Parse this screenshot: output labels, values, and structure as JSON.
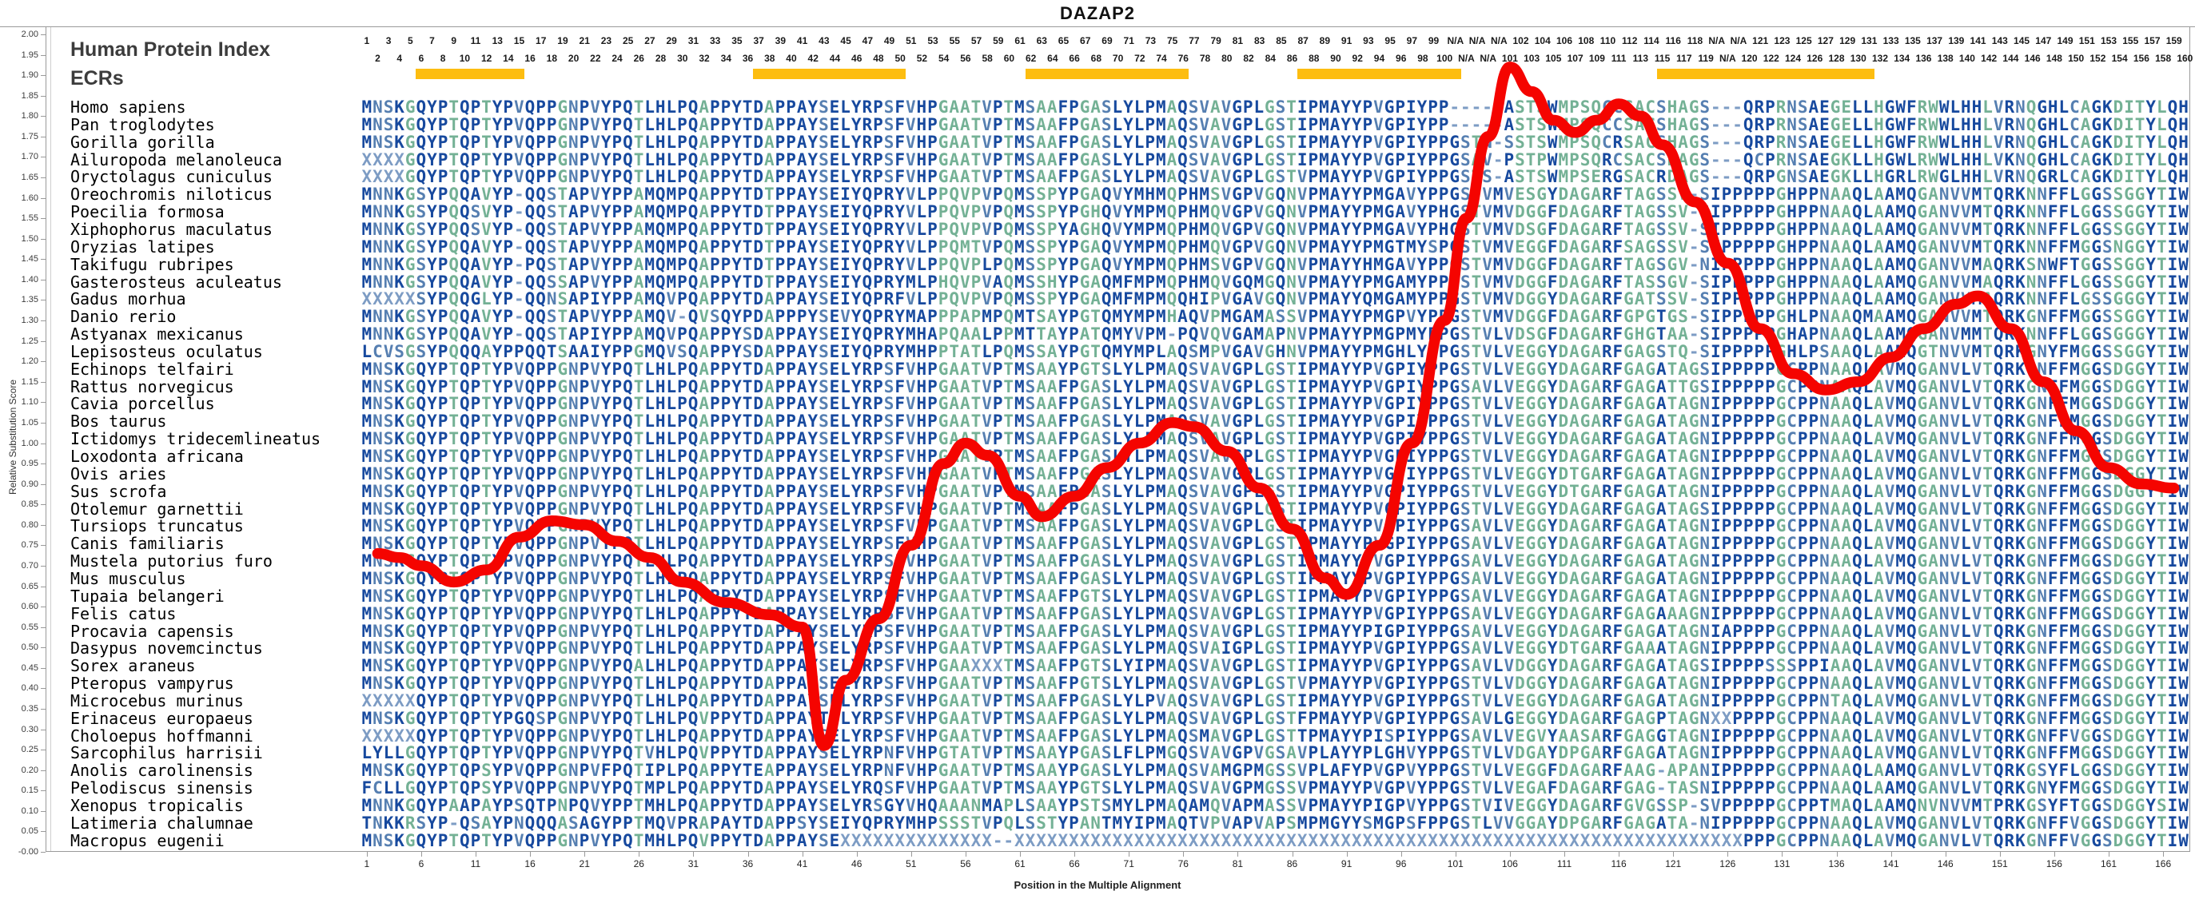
{
  "title": "DAZAP2",
  "panel": {
    "header": "Human Protein Index",
    "ecrs_label": "ECRs"
  },
  "y_axis": {
    "label": "Relative Substitution Score",
    "max": 2.0,
    "min": 0.0,
    "step": 0.05
  },
  "x_axis": {
    "label": "Position in the Multiple Alignment",
    "ticks": [
      1,
      6,
      11,
      16,
      21,
      26,
      31,
      36,
      41,
      46,
      51,
      56,
      61,
      66,
      71,
      76,
      81,
      86,
      91,
      96,
      101,
      106,
      111,
      116,
      121,
      126,
      131,
      136,
      141,
      146,
      151,
      156,
      161,
      166
    ]
  },
  "position_labels": {
    "odd_row": [
      "1",
      "3",
      "5",
      "7",
      "9",
      "11",
      "13",
      "15",
      "17",
      "19",
      "21",
      "23",
      "25",
      "27",
      "29",
      "31",
      "33",
      "35",
      "37",
      "39",
      "41",
      "43",
      "45",
      "47",
      "49",
      "51",
      "53",
      "55",
      "57",
      "59",
      "61",
      "63",
      "65",
      "67",
      "69",
      "71",
      "73",
      "75",
      "77",
      "79",
      "81",
      "83",
      "85",
      "87",
      "89",
      "91",
      "93",
      "95",
      "97",
      "99",
      "N/A",
      "N/A",
      "N/A",
      "102",
      "104",
      "106",
      "108",
      "110",
      "112",
      "114",
      "116",
      "118",
      "N/A",
      "N/A",
      "121",
      "123",
      "125",
      "127",
      "129",
      "131",
      "133",
      "135",
      "137",
      "139",
      "141",
      "143",
      "145",
      "147",
      "149",
      "151",
      "153",
      "155",
      "157",
      "159"
    ],
    "even_row": [
      "2",
      "4",
      "6",
      "8",
      "10",
      "12",
      "14",
      "16",
      "18",
      "20",
      "22",
      "24",
      "26",
      "28",
      "30",
      "32",
      "34",
      "36",
      "38",
      "40",
      "42",
      "44",
      "46",
      "48",
      "50",
      "52",
      "54",
      "56",
      "58",
      "60",
      "62",
      "64",
      "66",
      "68",
      "70",
      "72",
      "74",
      "76",
      "78",
      "80",
      "82",
      "84",
      "86",
      "88",
      "90",
      "92",
      "94",
      "96",
      "98",
      "100",
      "N/A",
      "N/A",
      "101",
      "103",
      "105",
      "107",
      "109",
      "111",
      "113",
      "115",
      "117",
      "119",
      "N/A",
      "120",
      "122",
      "124",
      "126",
      "128",
      "130",
      "132",
      "134",
      "136",
      "138",
      "140",
      "142",
      "144",
      "146",
      "148",
      "150",
      "152",
      "154",
      "156",
      "158",
      "160"
    ]
  },
  "ecr_bars": {
    "color": "#FDBD10",
    "column_ranges": [
      [
        6,
        15
      ],
      [
        37,
        50
      ],
      [
        62,
        76
      ],
      [
        87,
        101
      ],
      [
        120,
        139
      ]
    ]
  },
  "colors": {
    "seq_navy": "#17499E",
    "seq_steel": "#567FB1",
    "seq_green": "#74B195",
    "seq_muted": "#7D9CC4",
    "line_red": "#F50400",
    "ecr_yellow": "#FDBD10",
    "frame_gray": "#9A9A9A"
  },
  "chart_data": {
    "type": "line",
    "title": "DAZAP2",
    "xlabel": "Position in the Multiple Alignment",
    "ylabel": "Relative Substitution Score",
    "ylim": [
      0.0,
      2.0
    ],
    "xlim": [
      1,
      168
    ],
    "legend_position": "none",
    "grid": false,
    "series_name": "relative substitution score",
    "points": [
      [
        2,
        0.73
      ],
      [
        4,
        0.72
      ],
      [
        6,
        0.7
      ],
      [
        9,
        0.66
      ],
      [
        12,
        0.69
      ],
      [
        15,
        0.77
      ],
      [
        18,
        0.81
      ],
      [
        21,
        0.8
      ],
      [
        24,
        0.76
      ],
      [
        27,
        0.72
      ],
      [
        30,
        0.66
      ],
      [
        34,
        0.61
      ],
      [
        38,
        0.58
      ],
      [
        41,
        0.55
      ],
      [
        43,
        0.26
      ],
      [
        45,
        0.42
      ],
      [
        48,
        0.57
      ],
      [
        51,
        0.75
      ],
      [
        54,
        0.95
      ],
      [
        56,
        1.0
      ],
      [
        58,
        0.97
      ],
      [
        61,
        0.87
      ],
      [
        63,
        0.82
      ],
      [
        66,
        0.87
      ],
      [
        69,
        0.94
      ],
      [
        72,
        1.0
      ],
      [
        75,
        1.05
      ],
      [
        77,
        1.04
      ],
      [
        80,
        0.98
      ],
      [
        83,
        0.89
      ],
      [
        86,
        0.79
      ],
      [
        89,
        0.67
      ],
      [
        91,
        0.63
      ],
      [
        94,
        0.75
      ],
      [
        97,
        1.0
      ],
      [
        100,
        1.3
      ],
      [
        102,
        1.55
      ],
      [
        104,
        1.75
      ],
      [
        106,
        1.92
      ],
      [
        108,
        1.86
      ],
      [
        110,
        1.79
      ],
      [
        112,
        1.76
      ],
      [
        114,
        1.79
      ],
      [
        116,
        1.83
      ],
      [
        118,
        1.8
      ],
      [
        120,
        1.73
      ],
      [
        123,
        1.59
      ],
      [
        126,
        1.44
      ],
      [
        129,
        1.28
      ],
      [
        132,
        1.17
      ],
      [
        135,
        1.13
      ],
      [
        138,
        1.15
      ],
      [
        141,
        1.21
      ],
      [
        144,
        1.28
      ],
      [
        147,
        1.34
      ],
      [
        149,
        1.36
      ],
      [
        152,
        1.28
      ],
      [
        155,
        1.15
      ],
      [
        158,
        1.03
      ],
      [
        161,
        0.94
      ],
      [
        164,
        0.9
      ],
      [
        167,
        0.89
      ]
    ]
  },
  "alignment": {
    "num_columns": 168,
    "species": [
      {
        "name": "Homo sapiens",
        "seq": "MNSKGQYPTQPTYPVQPPGNPVYPQTLHLPQAPPYTDAPPAYSELYRPSFVHPGAATVPTMSAAFPGASLYLPMAQSVAVGPLGSTIPMAYYPVGPIYPP-----ASTSWMPSQCCSACSHAGS---QRPRNSAEGELLHGWFRWWLHHLVRNQGHLCAGKDITYLQH"
      },
      {
        "name": "Pan troglodytes",
        "seq": "MNSKGQYPTQPTYPVQPPGNPVYPQTLHLPQAPPYTDAPPAYSELYRPSFVHPGAATVPTMSAAFPGASLYLPMAQSVAVGPLGSTIPMAYYPVGPIYPP-----ASTSWMPSQCCSACSHAGS---QRPRNSAEGELLHGWFRWWLHHLVRNQGHLCAGKDITYLQH"
      },
      {
        "name": "Gorilla gorilla",
        "seq": "MNSKGQYPTQPTYPVQPPGNPVYPQTLHLPQAPPYTDAPPAYSELYRPSFVHPGAATVPTMSAAFPGASLYLPMAQSVAVGPLGSTIPMAYYPVGPIYPPGSTN-SSTSWMPSQCRSACSHAGS---QRPRNSAEGELLHGWFRWWLHHLVRNQGHLCAGKDITYLQH"
      },
      {
        "name": "Ailuropoda melanoleuca",
        "seq": "XXXXGQYPTQPTYPVQPPGNPVYPQTLHLPQAPPYTDAPPAYSELYRPSFVHPGAATVPTMSAAFPGASLYLPMAQSVAVGPLGSTIPMAYYPVGPIYPPGSAV-PSTPWMPSQRCSACSHAGS---QCPRNSAEGKLLHGWLRWWLHHLVKNQGHLCAGKDITYLQH"
      },
      {
        "name": "Oryctolagus cuniculus",
        "seq": "XXXXGQYPTQPTYPVQPPGNPVYPQTLHLPQAPPYTDAPPAYSELYRPSFVHPGAATVPTMSAAFPGASLYLPMAQSVAVGPLGSTVPMAYYPVGPIYPPGSTS-ASTSWMPSERGSACRDAGS---QRPGNSAEGKLLHGRLRWGLHHLVRNQGRLCAGKDITYLQH"
      },
      {
        "name": "Oreochromis niloticus",
        "seq": "MNNKGSYPQQAVYP-QQSTAPVYPPAMQMPQAPPYTDTPPAYSEIYQPRYVLPPQVPVPQMSSPYPGAQVYMHMQPHMSVGPVGQNVPMAYYPMGAVYPPGSTVMVESGYDAGARFTAGSSV-SIPPPPPGHPPNAAQLAAMQGANVVMTQRKNNFFLGGSSGGYTIW"
      },
      {
        "name": "Poecilia formosa",
        "seq": "MNNKGSYPQQSVYP-QQSTAPVYPPAMQMPQAPPYTDTPPAYSEIYQPRYVLPPQVPVPQMSSPYPGHQVYMPMQPHMQVGPVGQNVPMAYYPMGAVYPHGSTVMVDGGFDAGARFTAGSSV-SIPPPPPGHPPNAAQLAAMQGANVVMTQRKNNFFLGGSSGGYTIW"
      },
      {
        "name": "Xiphophorus maculatus",
        "seq": "MNNKGSYPQQSVYP-QQSTAPVYPPAMQMPQAPPYTDTPPAYSEIYQPRYVLPPQVPVPQMSSPYAGHQVYMPMQPHMQVGPVGQNVPMAYYPMGAVYPHGSTVMVDSGFDAGARFTAGSSV-SIPPPPPGHPPNAAQLAAMQGANVVMTQRKNNFFLGGSSGGYTIW"
      },
      {
        "name": "Oryzias latipes",
        "seq": "MNNKGSYPQQAVYP-QQSTAPVYPPAMQMPQAPPYTDTPPAYSEIYQPRYVLPPQMTVPQMSSPYPGAQVYMPMQPHMQVGPVGQNVPMAYYPMGTMYSPGSTVMVEGGFDAGARFSAGSSV-SIPPPPPGHPPNAAQLAAMQGANVVMTQRKNNFFMGGSNGGYTIW"
      },
      {
        "name": "Takifugu rubripes",
        "seq": "MNNKGSYPQQAVYP-PQSTAPVYPPAMQMPQAPPYTDTPPAYSEIYQPRYVLPPQVPLPQMSSPYPGAQVYMPMQPHMSVGPVGQNVPMAYYHMGAVYPPGSTVMVDGGFDAGARFTAGSGV-NIPPPPPGHPPNAAQLAAMQGANVVMAQRKSNWFTGGSSGGYTIW"
      },
      {
        "name": "Gasterosteus aculeatus",
        "seq": "MNNKGSYPQQAVYP-QQSSAPVYPPAMQMPQAPPYTDTPPAYSEIYQPRYMLPHQVPVAQMSSHYPGAQMFMPMQPHMQVGQMGQNVPMAYYPMGAMYPPGSTVMVDGGFDAGARFTASSGV-SIPPPPPGHPPNAAQLAAMQGANVVMAQRKNNFFLGGSSGGYTIW"
      },
      {
        "name": "Gadus morhua",
        "seq": "XXXXXSYPQQGLYP-QQNSAPIYPPAMQVPQAPPYTDAPPAYSEIYQPRFVLPPQVPVPQMSSPYPGAQMFMPMQQHIPVGAVGQNVPMAYYQMGAMYPPGSTVMVDGGYDAGARFGATSSV-SIPPPPPGHPPNAAQLAAMQGANVVMAQRKNNFFLGSSGGGYTIW"
      },
      {
        "name": "Danio rerio",
        "seq": "MNNKGSYPQQAVYP-QQSTAPVYPPAMQV-QVSQYPDAPPPYSEVYQPRYMAPPPAPMPQMTSAYPGTQMYMPMHAQVPMGAMASSVPMAYYPMGPVYPPGSTVMVDGGFDAGARFGPGTGS-SIPPPPPGHLPNAAQMAAMQGANVVMTQRKGNFFMGGSSGGYTIW"
      },
      {
        "name": "Astyanax mexicanus",
        "seq": "MNNKGSYPQQAVYP-QQSTAPIYPPAMQVPQAPPYSDAPPAYSEIYQPRYMHAPQAALPPMTTAYPATQMYVPM-PQVQVGAMAPNVPMAYYPMGPMYPPGSTVLVDSGFDAGARFGHGTAA-SIPPPPPGHAPNAAQLAAMQGANVMMTQRKNNFFLGGSGGGYTIW"
      },
      {
        "name": "Lepisosteus oculatus",
        "seq": "LCVSGSYPQQQAYPPQQTSAAIYPPGMQVSQAPPYSDAPPAYSEIYQPRYMHPPTATLPQMSSAYPGTQMYMPLAQSMPVGAVGHNVPMAYYPMGHLYPPGSTVLVEGGYDAGARFGAGSTQ-SIPPPPPGHLPSAAQLAAMQGTNVVMTQRKGNYFMGGSSGGYTIW"
      },
      {
        "name": "Echinops telfairi",
        "seq": "MNSKGQYPTQPTYPVQPPGNPVYPQTLHLPQAPPYTDAPPAYSELYRPSFVHPGAATVPTMSAAYPGTSLYLPMAQSVAVGPLGSTIPMAYYPVGPIYPPGSTVLVEGGYDAGARFGAGATAGSIPPPPPGCPPNAAQLAVMQGANVLVTQRKGNFFMGGSDGGYTIW"
      },
      {
        "name": "Rattus norvegicus",
        "seq": "MNSKGQYPTQPTYPVQPPGNPVYPQTLHLPQAPPYTDAPPAYSELYRPSFVHPGAATVPTMSAAFPGASLYLPMAQSVAVGPLGSTIPMAYYPVGPIYPPGSAVLVEGGYDAGARFGAGATTGSIPPPPPGCPPNAAQLAVMQGANVLVTQRKGNFFMGGSDGGYTIW"
      },
      {
        "name": "Cavia porcellus",
        "seq": "MNSKGQYPTQPTYPVQPPGNPVYPQTLHLPQAPPYTDAPPAYSELYRPSFVHPGAATVPTMSAAFPGASLYLPMAQSVAVGPLGSTIPMAYYPVGPIYPPGSTVLVEGGYDAGARFGAGATAGNIPPPPPGCPPNAAQLAVMQGANVLVTQRKGNFFMGGSDGGYTIW"
      },
      {
        "name": "Bos taurus",
        "seq": "MNSKGQYPTQPTYPVQPPGNPVYPQTLHLPQAPPYTDAPPAYSELYRPSFVHPGAATVPTMSAAFPGASLYLPMAQSVAVGPLGSTIPMAYYPVGPIYPPGSTVLVEGGYDAGARFGAGATAGNIPPPPPGCPPNAAQLAVMQGANVLVTQRKGNFFMGGSDGGYTIW"
      },
      {
        "name": "Ictidomys tridecemlineatus",
        "seq": "MNSKGQYPTQPTYPVQPPGNPVYPQTLHLPQAPPYTDAPPAYSELYRPSFVHPGAATVPTMSAAFPGASLYLPMAQSVAVGPLGSTIPMAYYPVGPIYPPGSTVLVEGGYDAGARFGAGATAGNIPPPPPGCPPNAAQLAVMQGANVLVTQRKGNFFMGGSDGGYTIW"
      },
      {
        "name": "Loxodonta africana",
        "seq": "MNSKGQYPTQPTYPVQPPGNPVYPQTLHLPQAPPYTDAPPAYSELYRPSFVHPGAATVPTMSAAFPGASLYLPMAQSVAVGPLGSTIPMAYYPVGPIYPPGSTVLVEGGYDAGARFGAGATAGNIPPPPPGCPPNAAQLAVMQGANVLVTQRKGNFFMGGSDGGYTIW"
      },
      {
        "name": "Ovis aries",
        "seq": "MNSKGQYPTQPTYPVQPPGNPVYPQTLHLPQAPPYTDAPPAYSELYRPSFVHPGAATVPTMSAAFPGASLYLPMAQSVAVGPLGSTIPMAYYPVGPIYPPGSTVLVEGGYDTGARFGAGATAGNIPPPPPGCPPNAAQLAVMQGANVLVTQRKGNFFMGGSDGGYTIW"
      },
      {
        "name": "Sus scrofa",
        "seq": "MNSKGQYPTQPTYPVQPPGNPVYPQTLHLPQAPPYTDAPPAYSELYRPSFVHPGAATVPTMSAAFPGASLYLPMAQSVAVGPLGSTIPMAYYPVGPIYPPGSTVLVEGGYDTGARFGAGATAGNIPPPPPGCPPNAAQLAVMQGANVLVTQRKGNFFMGGSDGGYTIW"
      },
      {
        "name": "Otolemur garnettii",
        "seq": "MNSKGQYPTQPTYPVQPPGNPVYPQTLHLPQAPPYTDAPPAYSELYRPSFVHPGAATVPTMSAAFPGASLYLPMAQSVAVGPLGSTIPMAYYPVGPIYPPGSTVLVEGGYDAGARFGAGATAGSIPPPPPGCPPNAAQLAVMQGANVLVTQRKGNFFMGGSDGGYTIW"
      },
      {
        "name": "Tursiops truncatus",
        "seq": "MNSKGQYPTQPTYPVQPPGNPVYPQTLHLPQAPPYTDAPPAYSELYRPSFVHPGAATVPTMSAAFPGASLYLPMAQSVAVGPLGSTIPMAYYPVGPIYPPGSAVLVEGGYDAGARFGAGATAGNIPPPPPGCPPNAAQLAVMQGANVLVTQRKGNFFMGGSDGGYTIW"
      },
      {
        "name": "Canis familiaris",
        "seq": "MNSKGQYPTQPTYPVQPPGNPVYPQTLHLPQAPPYTDAPPAYSELYRPSFVHPGAATVPTMSAAFPGASLYLPMAQSVAVGPLGSTIPMAYYPVGPIYPPGSAVLVEGGYDAGARFGAGATAGNIPPPPPGCPPNAAQLAVMQGANVLVTQRKGNFFMGGSDGGYTIW"
      },
      {
        "name": "Mustela putorius furo",
        "seq": "MNSKGQYPTQPTYPVQPPGNPVYPQTLHLPQAPPYTDAPPAYSELYRPSFVHPGAATVPTMSAAFPGASLYLPMAQSVAVGPLGSTIPMAYYPVGPIYPPGSAVLVEGGYDAGARFGAGATAGNIPPPPPGCPPNAAQLAVMQGANVLVTQRKGNFFMGGSDGGYTIW"
      },
      {
        "name": "Mus musculus",
        "seq": "MNSKGQYPTQPTYPVQPPGNPVYPQTLHLPQAPPYTDAPPAYSELYRPSFVHPGAATVPTMSAAFPGASLYLPMAQSVAVGPLGSTIPMAYYPVGPIYPPGSAVLVEGGYDAGARFGAGATAGNIPPPPPGCPPNAAQLAVMQGANVLVTQRKGNFFMGGSDGGYTIW"
      },
      {
        "name": "Tupaia belangeri",
        "seq": "MNSKGQYPTQPTYPVQPPGNPVYPQTLHLPQAPPYTDAPPAYSELYRPSFVHPGAATVPTMSAAFPGTSLYLPMAQSVAVGPLGSTIPMAYYPVGPIYPPGSAVLVEGGYDAGARFGAGATAGNIPPPPPGCPPNAAQLAVMQGANVLVTQRKGNFFMGGSDGGYTIW"
      },
      {
        "name": "Felis catus",
        "seq": "MNSKGQYPTQPTYPVQPPGNPVYPQTLHLPQAPPYTDAPPAYSELYRPSFVHPGAATVPTMSAAFPGASLYLPMAQSVAVGPLGSTIPMAYYPVGPIYPPGSAVLVEGGYDAGARFGAGAAAGNIPPPPPGCPPNAAQLAVMQGANVLVTQRKGNFFMGGSDGGYTIW"
      },
      {
        "name": "Procavia capensis",
        "seq": "MNSKGQYPTQPTYPVQPPGNPVYPQTLHLPQAPPYTDAPPAYSELYRPSFVHPGAATVPTMSAAFPGASLYLPMAQSVAVGPLGSTIPMAYYPIGPIYPPGSAVLVEGGYDAGARFGAGATAGNIAPPPPGCPPNAAQLAVMQGANVLVTQRKGNFFMGGSDGGYTIW"
      },
      {
        "name": "Dasypus novemcinctus",
        "seq": "MNSKGQYPTQPTYPVQPPGNPVYPQTLHLPQAPPYTDAPPAYSELYRPSFVHPGAATVPTMSAAFPGASLYLPMAQSVAIGPLGSTIPMAYYPVGPIYPPGSAVLVEGGYDTGARFGAAATAGNIPPPPPGCPPNAAQLAVMQGANVLVTQRKGNFFMGGSDGGYTIW"
      },
      {
        "name": "Sorex araneus",
        "seq": "MNSKGQYPTQPTYPVQPPGNPVYPQALHLPQAPPYTDAPPAYSELYRPSFVHPGAAXXXTMSAAFPGTSLYIPMAQSVAVGPLGSTIPMAYYPVGPIYPPGSAVLVDGGYDAGARFGAGATAGSIPPPPSSSPPIAAQLAVMQGANVLVTQRKGNFFMGGSDGGYTIW"
      },
      {
        "name": "Pteropus vampyrus",
        "seq": "MNSKGQYPTQPTYPVQPPGNPVYPQTLHLPQAPPYTDAPPAYSELYRPSFVHPGAATVPTMSAAFPGTSLYLPMAQSVAVGPLGSTVPMAYYPVGPIYPPGSTVLVDGGYDAGARFGAGATAGNIPPPPPGCPPNAAQLAVMQGANVLVTQRKGNFFMGGSDGGYTIW"
      },
      {
        "name": "Microcebus murinus",
        "seq": "XXXXXQYPTQPTYPVQPPGNPVYPQTLHLPQAPPYTDAPPAYSELYRPSFVHPGAATVPTMSAAFPGASLYLPVAQSVAVGPLGSTIPMAYYPVGPIYPPGSTVLVEGGYDAGARFGAGATAGNIPPPPPGCPPNTAQLAVMQGANVLVTQRKGNFFMGGSDGGYTIW"
      },
      {
        "name": "Erinaceus europaeus",
        "seq": "MNSKGQYPTQPTYPGQSPGNPVYPQTLHLPQVPPYTDAPPAYTELYRPSFVHPGAATVPTMSAAFPGASLYLPMAQSVAVGPLGSTFPMAYYPVGPIYPPGSAVLGEGGYDAGARFGAGPTAGNXXPPPPGCPPNAAQLAVMQGANVLVTQRKGNFFMGGSDGGYTIW"
      },
      {
        "name": "Choloepus hoffmanni",
        "seq": "XXXXXQYPTQPTYPVQPPGNPVYPQTLHLPQAPPYTDAPPAYSELYRPSFVHPGAATVPTMSAAFPGASLYLPMAQSMAVGPLGSTTPMAYYPISPIYPPGSAVLVEGVYAASARFGAGGTAGNIPPPPPGCPPNAAQLAVMQGANVLVTQRKGNFFVGGSDGGYTIW"
      },
      {
        "name": "Sarcophilus harrisii",
        "seq": "LYLLGQYPTQPTYPVQPPGNPVYPQTVHLPQVPPYTDAPPAYSELYRPNFVHPGTATVPTMSAAYPGASLFLPMGQSVAVGPVGSAVPLAYYPLGHVYPPGSTVLVDGAYDPGARFGAGATAGNIPPPPPGCPPNAAQLAVMQGANVLVTQRKGNFFMGGSDGGYTIW"
      },
      {
        "name": "Anolis carolinensis",
        "seq": "MNSKGQYPTQPSYPVQPPGNPVFPQTIPLPQAPPYTEAPPAYSELYRPNFVHPGAATVPTMSAAYPGASLYLPMAQSVAMGPMGSSVPLAFYPVGPVYPPGSTVLVEGGFDAGARFAAG-APANIPPPPPGCPPNAAQLAAMQGANVLVTQRKGSYFLGGSDGGYTIW"
      },
      {
        "name": "Pelodiscus sinensis",
        "seq": "FCLLGQYPTQPSYPVQPPGNPVYPQTMPLPQAPPYTDAPPAYSELYRQSFVHPGAATVPTMSAAYPGTSLYLPMAQSVAVGPMGSSVPMAYYPVGPVYPPGSTVLVEGAFDAGARFGAG-TASNIPPPPPGCPPNAAQLAAMQGANVLVTQRKGNYFMGGSDGGYTIW"
      },
      {
        "name": "Xenopus tropicalis",
        "seq": "MNNKGQYPAAPAYPSQTPNPQVYPPTMHLPQAPPYTDAPPAYSELYRSGYVHQAAANMAPLSAAYPSTSMYLPMAQAMQVAPMASSVPMAYYPIGPVYPPGSTVIVEGGYDAGARFGVGSSP-SVPPPPPGCPPTMAQLAAMQNVNVVMTPRKGSYFTGGSDGGYSIW"
      },
      {
        "name": "Latimeria chalumnae",
        "seq": "TNKKRSYP-QSAYPNQQQASAGYPPTMQVPRAPAYTDAPPSYSEIYQPRYMHPSSSTVPQLSSTYPANTMYIPMAQTVPVAPVAPSMPMGYYSMGPSFPPGSTLVVGGAYDPGARFGAGATA-NIPPPPPGCPPNAAQLAVMQGANVLVTQRKGNFFVGGSDGGYTIW"
      },
      {
        "name": "Macropus eugenii",
        "seq": "MNSKGQYPTQPTYPVQPPGNPVYPQTMHLPQVPPYTDAPPAYSEXXXXXXXXXXXXXX--XXXXXXXXXXXXXXXXXXXXXXXXXXXXXXXXXXXXXXXXXXXXXXXXXXXXXXXXXXXXXXXXXXXPPPGCPPNAAQLAVMQGANVLVTQRKGNFFVGGSDGGYTIW"
      }
    ]
  }
}
